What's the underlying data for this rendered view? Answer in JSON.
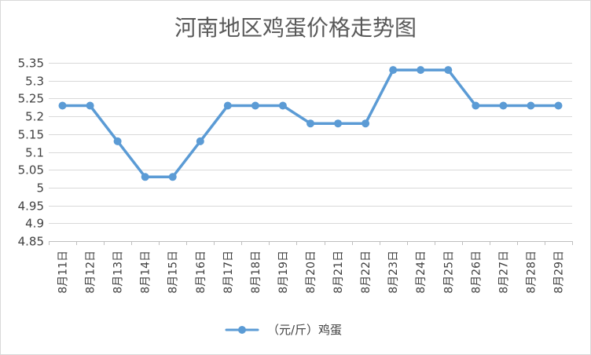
{
  "chart_data": {
    "type": "line",
    "title": "河南地区鸡蛋价格走势图",
    "xlabel": "",
    "ylabel": "",
    "categories": [
      "8月11日",
      "8月12日",
      "8月13日",
      "8月14日",
      "8月15日",
      "8月16日",
      "8月17日",
      "8月18日",
      "8月19日",
      "8月20日",
      "8月21日",
      "8月22日",
      "8月23日",
      "8月24日",
      "8月25日",
      "8月26日",
      "8月27日",
      "8月28日",
      "8月29日"
    ],
    "series": [
      {
        "name": "（元/斤）鸡蛋",
        "values": [
          5.23,
          5.23,
          5.13,
          5.03,
          5.03,
          5.13,
          5.23,
          5.23,
          5.23,
          5.18,
          5.18,
          5.18,
          5.33,
          5.33,
          5.33,
          5.23,
          5.23,
          5.23,
          5.23
        ],
        "color": "#5b9bd5"
      }
    ],
    "ylim": [
      4.85,
      5.35
    ],
    "yticks": [
      "5.35",
      "5.3",
      "5.25",
      "5.2",
      "5.15",
      "5.1",
      "5.05",
      "5",
      "4.95",
      "4.9",
      "4.85"
    ],
    "grid": true,
    "legend_position": "bottom",
    "colors": {
      "line": "#5b9bd5",
      "grid": "#d9d9d9",
      "text": "#404040",
      "title": "#595959"
    }
  }
}
